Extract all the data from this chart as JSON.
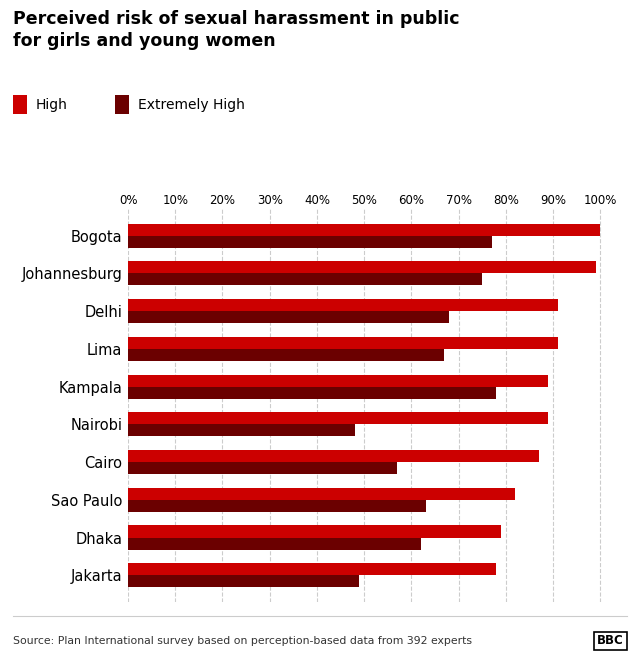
{
  "title": "Perceived risk of sexual harassment in public\nfor girls and young women",
  "cities": [
    "Bogota",
    "Johannesburg",
    "Delhi",
    "Lima",
    "Kampala",
    "Nairobi",
    "Cairo",
    "Sao Paulo",
    "Dhaka",
    "Jakarta"
  ],
  "high_values": [
    100,
    99,
    91,
    91,
    89,
    89,
    87,
    82,
    79,
    78
  ],
  "extremely_high_values": [
    77,
    75,
    68,
    67,
    78,
    48,
    57,
    63,
    62,
    49
  ],
  "color_high": "#cc0000",
  "color_extremely_high": "#6b0000",
  "xlabel_ticks": [
    0,
    10,
    20,
    30,
    40,
    50,
    60,
    70,
    80,
    90,
    100
  ],
  "source": "Source: Plan International survey based on perception-based data from 392 experts",
  "legend_high": "High",
  "legend_extremely_high": "Extremely High",
  "background_color": "#ffffff"
}
